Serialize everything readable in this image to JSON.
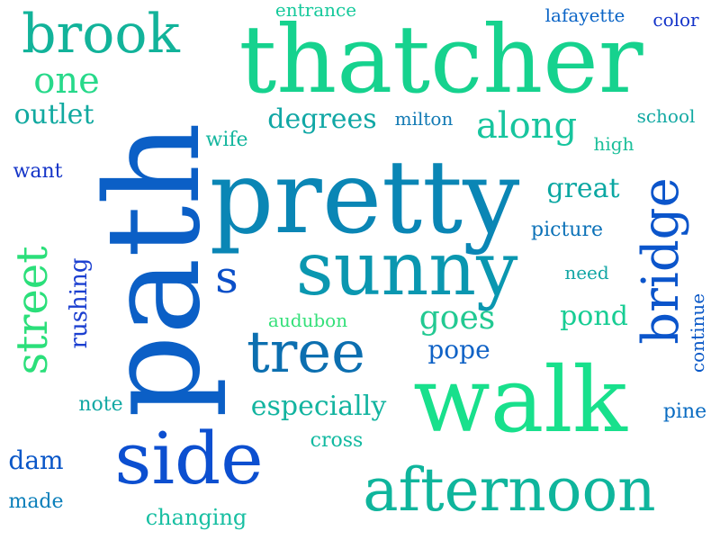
{
  "words": {
    "path": {
      "text": "path",
      "color": "#0b5fc6"
    },
    "thatcher": {
      "text": "thatcher",
      "color": "#16d28e"
    },
    "pretty": {
      "text": "pretty",
      "color": "#0a86b5"
    },
    "walk": {
      "text": "walk",
      "color": "#18e08c"
    },
    "sunny": {
      "text": "sunny",
      "color": "#0a97b0"
    },
    "side": {
      "text": "side",
      "color": "#0c4fd0"
    },
    "afternoon": {
      "text": "afternoon",
      "color": "#0fb59c"
    },
    "brook": {
      "text": "brook",
      "color": "#12b39a"
    },
    "tree": {
      "text": "tree",
      "color": "#0c6fb0"
    },
    "bridge": {
      "text": "bridge",
      "color": "#0b55cb"
    },
    "street": {
      "text": "street",
      "color": "#2bdf7a"
    },
    "s": {
      "text": "s",
      "color": "#0b4fc8"
    },
    "one": {
      "text": "one",
      "color": "#27d98a"
    },
    "along": {
      "text": "along",
      "color": "#17c59e"
    },
    "outlet": {
      "text": "outlet",
      "color": "#11a9a0"
    },
    "degrees": {
      "text": "degrees",
      "color": "#10a7a5"
    },
    "great": {
      "text": "great",
      "color": "#0ba7a2"
    },
    "goes": {
      "text": "goes",
      "color": "#22c992"
    },
    "pond": {
      "text": "pond",
      "color": "#18cd94"
    },
    "especially": {
      "text": "especially",
      "color": "#13b4a0"
    },
    "rushing": {
      "text": "rushing",
      "color": "#1b3fd0"
    },
    "entrance": {
      "text": "entrance",
      "color": "#15c99b"
    },
    "lafayette": {
      "text": "lafayette",
      "color": "#0a64c6"
    },
    "color": {
      "text": "color",
      "color": "#1333c9"
    },
    "milton": {
      "text": "milton",
      "color": "#137ab4"
    },
    "school": {
      "text": "school",
      "color": "#12a9a3"
    },
    "wife": {
      "text": "wife",
      "color": "#14b69e"
    },
    "high": {
      "text": "high",
      "color": "#1bbf9a"
    },
    "want": {
      "text": "want",
      "color": "#1535c8"
    },
    "picture": {
      "text": "picture",
      "color": "#0c72b8"
    },
    "need": {
      "text": "need",
      "color": "#12a6a5"
    },
    "audubon": {
      "text": "audubon",
      "color": "#35e07a"
    },
    "pope": {
      "text": "pope",
      "color": "#0f62c6"
    },
    "continue": {
      "text": "continue",
      "color": "#0b59c7"
    },
    "note": {
      "text": "note",
      "color": "#13a8a4"
    },
    "cross": {
      "text": "cross",
      "color": "#11b9a0"
    },
    "pine": {
      "text": "pine",
      "color": "#0a6cc2"
    },
    "dam": {
      "text": "dam",
      "color": "#0a57c8"
    },
    "made": {
      "text": "made",
      "color": "#0b7fba"
    },
    "changing": {
      "text": "changing",
      "color": "#18bfa2"
    }
  }
}
